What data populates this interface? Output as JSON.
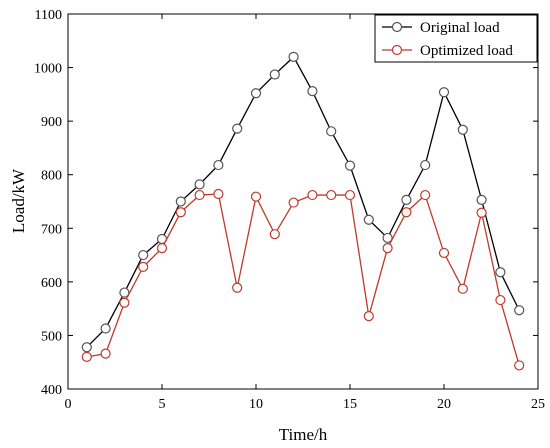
{
  "chart_data": {
    "type": "line",
    "xlabel": "Time/h",
    "ylabel": "Load/kW",
    "xlim": [
      0,
      25
    ],
    "ylim": [
      400,
      1100
    ],
    "xticks": [
      "0",
      "5",
      "10",
      "15",
      "20",
      "25"
    ],
    "yticks": [
      "400",
      "500",
      "600",
      "700",
      "800",
      "900",
      "1000",
      "1100"
    ],
    "grid": false,
    "legend_position": "top-right",
    "x": [
      1,
      2,
      3,
      4,
      5,
      6,
      7,
      8,
      9,
      10,
      11,
      12,
      13,
      14,
      15,
      16,
      17,
      18,
      19,
      20,
      21,
      22,
      23,
      24
    ],
    "series": [
      {
        "name": "Original load",
        "color": "#000000",
        "marker_edge": "#555555",
        "values": [
          478,
          513,
          580,
          650,
          680,
          750,
          782,
          818,
          886,
          952,
          987,
          1020,
          956,
          881,
          817,
          716,
          682,
          753,
          818,
          954,
          884,
          753,
          618,
          547
        ]
      },
      {
        "name": "Optimized load",
        "color": "#c0392b",
        "marker_edge": "#c0392b",
        "values": [
          460,
          466,
          561,
          628,
          663,
          730,
          762,
          764,
          589,
          759,
          689,
          748,
          762,
          762,
          762,
          536,
          663,
          730,
          762,
          654,
          587,
          729,
          566,
          444
        ]
      }
    ]
  }
}
